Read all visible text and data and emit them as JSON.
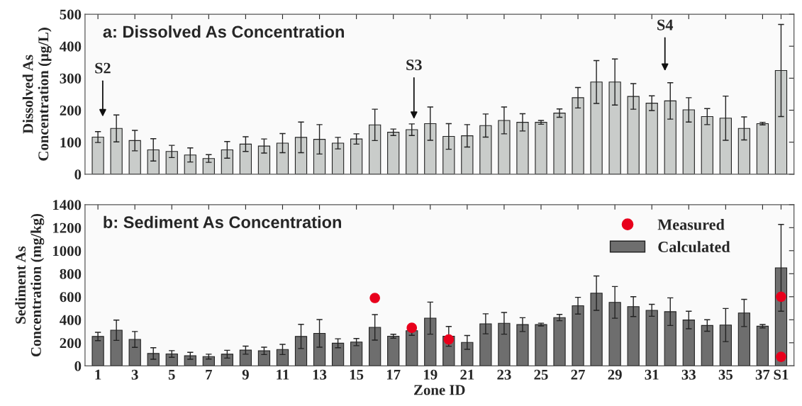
{
  "chart_data": [
    {
      "type": "bar",
      "title": "a: Dissolved As Concentration",
      "ylabel": "Dissolved As\nConcentration (μg/L)",
      "x": [
        1,
        2,
        3,
        4,
        5,
        6,
        7,
        8,
        9,
        10,
        11,
        12,
        13,
        14,
        15,
        16,
        17,
        18,
        19,
        20,
        21,
        22,
        23,
        24,
        25,
        26,
        27,
        28,
        29,
        30,
        31,
        32,
        33,
        34,
        35,
        36,
        37,
        38
      ],
      "xlim": [
        0.3,
        38.7
      ],
      "xticks": [
        {
          "value": 1,
          "label": null
        },
        {
          "value": 3,
          "label": null
        },
        {
          "value": 5,
          "label": null
        },
        {
          "value": 7,
          "label": null
        },
        {
          "value": 9,
          "label": null
        },
        {
          "value": 11,
          "label": null
        },
        {
          "value": 13,
          "label": null
        },
        {
          "value": 15,
          "label": null
        },
        {
          "value": 17,
          "label": null
        },
        {
          "value": 19,
          "label": null
        },
        {
          "value": 21,
          "label": null
        },
        {
          "value": 23,
          "label": null
        },
        {
          "value": 25,
          "label": null
        },
        {
          "value": 27,
          "label": null
        },
        {
          "value": 29,
          "label": null
        },
        {
          "value": 31,
          "label": null
        },
        {
          "value": 33,
          "label": null
        },
        {
          "value": 35,
          "label": null
        },
        {
          "value": 37,
          "label": null
        },
        {
          "value": 38,
          "label": null
        }
      ],
      "ylim": [
        0,
        500
      ],
      "yticks": [
        0,
        100,
        200,
        300,
        400,
        500
      ],
      "tick_labels": "y",
      "grid": false,
      "legend": false,
      "series": [
        {
          "color": "#c9ccca",
          "values": [
            116,
            143,
            105,
            76,
            71,
            60,
            49,
            76,
            94,
            88,
            97,
            115,
            109,
            97,
            110,
            154,
            131,
            139,
            158,
            118,
            120,
            152,
            168,
            162,
            162,
            191,
            239,
            288,
            288,
            243,
            222,
            229,
            201,
            180,
            175,
            143,
            158,
            324
          ],
          "errors": [
            17,
            42,
            32,
            35,
            19,
            22,
            12,
            26,
            23,
            22,
            30,
            48,
            46,
            18,
            16,
            49,
            10,
            18,
            52,
            40,
            35,
            36,
            42,
            27,
            6,
            13,
            32,
            67,
            72,
            40,
            23,
            57,
            38,
            25,
            69,
            36,
            4,
            144
          ]
        }
      ],
      "annotations": [
        "S2",
        "S3",
        "S4"
      ]
    },
    {
      "type": "bar",
      "title": "b: Sediment As Concentration",
      "ylabel": "Sediment As\nConcentration (mg/kg)",
      "xlabel": "Zone ID",
      "x": [
        1,
        2,
        3,
        4,
        5,
        6,
        7,
        8,
        9,
        10,
        11,
        12,
        13,
        14,
        15,
        16,
        17,
        18,
        19,
        20,
        21,
        22,
        23,
        24,
        25,
        26,
        27,
        28,
        29,
        30,
        31,
        32,
        33,
        34,
        35,
        36,
        37,
        38
      ],
      "xlim": [
        0.3,
        38.7
      ],
      "xticks": [
        {
          "value": 1,
          "label": "1"
        },
        {
          "value": 3,
          "label": "3"
        },
        {
          "value": 5,
          "label": "5"
        },
        {
          "value": 7,
          "label": "7"
        },
        {
          "value": 9,
          "label": "9"
        },
        {
          "value": 11,
          "label": "11"
        },
        {
          "value": 13,
          "label": "13"
        },
        {
          "value": 15,
          "label": "15"
        },
        {
          "value": 17,
          "label": "17"
        },
        {
          "value": 19,
          "label": "19"
        },
        {
          "value": 21,
          "label": "21"
        },
        {
          "value": 23,
          "label": "23"
        },
        {
          "value": 25,
          "label": "25"
        },
        {
          "value": 27,
          "label": "27"
        },
        {
          "value": 29,
          "label": "29"
        },
        {
          "value": 31,
          "label": "31"
        },
        {
          "value": 33,
          "label": "33"
        },
        {
          "value": 35,
          "label": "35"
        },
        {
          "value": 37,
          "label": "37"
        },
        {
          "value": 38,
          "label": "S1"
        }
      ],
      "ylim": [
        0,
        1400
      ],
      "yticks": [
        0,
        200,
        400,
        600,
        800,
        1000,
        1200,
        1400
      ],
      "grid": false,
      "legend": "top right",
      "series": [
        {
          "type": "scatter",
          "name": "Measured",
          "color": "#e8001c",
          "marker": "circle",
          "x": [
            16,
            18,
            20,
            38,
            38
          ],
          "values": [
            589,
            330,
            229,
            600,
            78
          ]
        },
        {
          "name": "Calculated",
          "color": "#6e6e6e",
          "values": [
            255,
            309,
            229,
            107,
            103,
            87,
            80,
            101,
            136,
            130,
            142,
            255,
            282,
            196,
            206,
            334,
            257,
            305,
            414,
            256,
            203,
            365,
            369,
            358,
            358,
            419,
            522,
            631,
            551,
            514,
            482,
            470,
            398,
            350,
            354,
            459,
            344,
            851
          ],
          "errors": [
            36,
            88,
            69,
            50,
            29,
            30,
            21,
            34,
            35,
            32,
            44,
            105,
            120,
            39,
            31,
            111,
            17,
            40,
            139,
            86,
            60,
            87,
            94,
            60,
            12,
            27,
            73,
            149,
            138,
            86,
            52,
            120,
            76,
            50,
            144,
            118,
            15,
            377
          ]
        }
      ]
    }
  ]
}
